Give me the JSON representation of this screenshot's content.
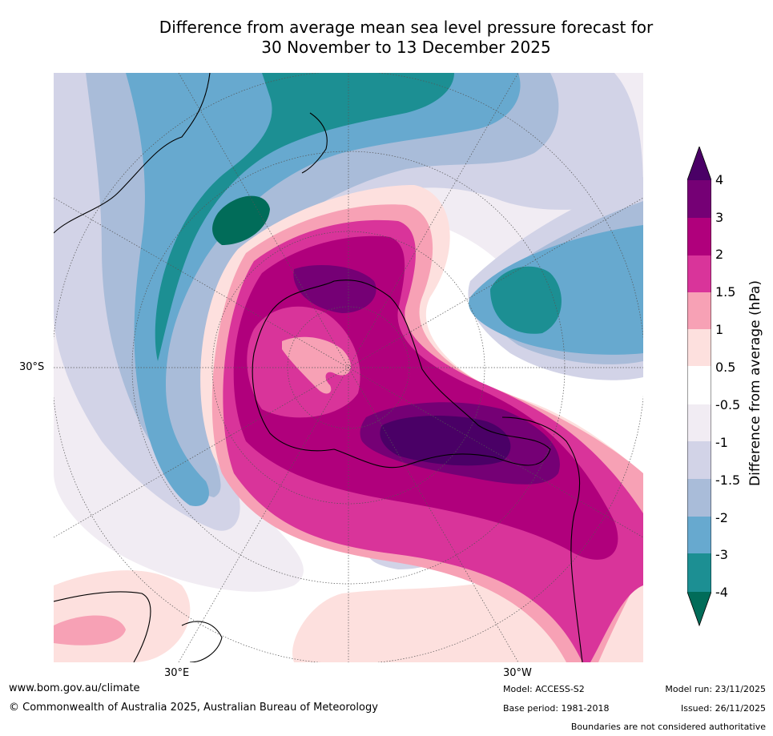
{
  "title": {
    "line1": "Difference from average mean sea level pressure forecast for",
    "line2": "30 November to 13 December 2025"
  },
  "map": {
    "labels": {
      "lat_30s": "30°S",
      "lon_30e": "30°E",
      "lon_30w": "30°W"
    }
  },
  "colorbar": {
    "title": "Difference from average (hPa)",
    "ticks": [
      "4",
      "3",
      "2",
      "1.5",
      "1",
      "0.5",
      "-0.5",
      "-1",
      "-1.5",
      "-2",
      "-3",
      "-4"
    ],
    "colors": {
      "above_4": "#4a0066",
      "3_to_4": "#750075",
      "2_to_3": "#b0007c",
      "1_5_to_2": "#d9349a",
      "1_to_1_5": "#f7a1b5",
      "0_5_to_1": "#fde0de",
      "neutral": "#ffffff",
      "m1_to_m0_5": "#f1ecf3",
      "m1_5_to_m1": "#d2d3e7",
      "m2_to_m1_5": "#a9bcd9",
      "m3_to_m2": "#67a9cf",
      "m4_to_m3": "#1c8f93",
      "below_m4": "#016c59"
    }
  },
  "footer": {
    "url": "www.bom.gov.au/climate",
    "copyright": "© Commonwealth of Australia 2025, Australian Bureau of Meteorology",
    "model": "Model: ACCESS-S2",
    "base_period": "Base period: 1981-2018",
    "model_run": "Model run: 23/11/2025",
    "issued": "Issued: 26/11/2025",
    "disclaimer": "Boundaries are not considered authoritative"
  }
}
